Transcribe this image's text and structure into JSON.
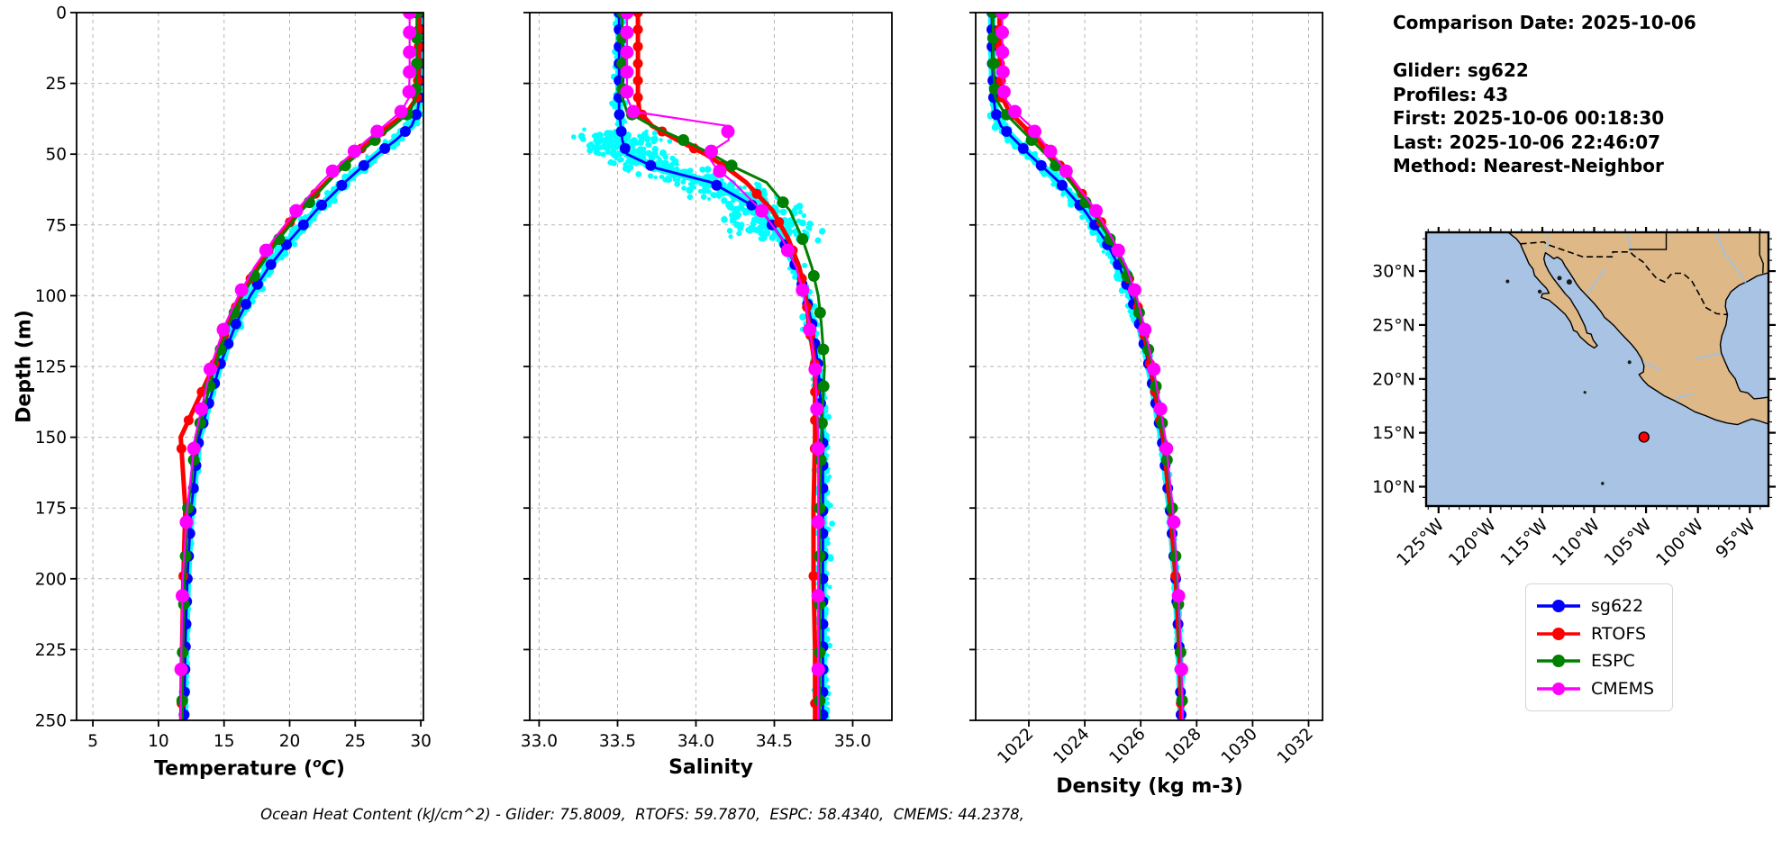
{
  "colors": {
    "sg622": "#0000ff",
    "RTOFS": "#ff0000",
    "ESPC": "#008000",
    "CMEMS": "#ff00ff",
    "scatter": "#00ffff",
    "grid": "#b5b5b5",
    "land": "#deb887",
    "ocean": "#a8c3e3",
    "river": "#9dc3e6",
    "marker": "#ff0000"
  },
  "info_block": {
    "line1": "Comparison Date: 2025-10-06",
    "line2": "Glider: sg622",
    "line3": "Profiles: 43",
    "line4": "First: 2025-10-06 00:18:30",
    "line5": "Last: 2025-10-06 22:46:07",
    "line6": "Method: Nearest-Neighbor"
  },
  "axes": {
    "ylabel": "Depth (m)",
    "temp_label": {
      "prefix": "Temperature (",
      "sup": "o",
      "unit": "C",
      "suffix": ")"
    }
  },
  "ohc_line": "Ocean Heat Content (kJ/cm^2) - Glider: 75.8009,  RTOFS: 59.7870,  ESPC: 58.4340,  CMEMS: 44.2378,",
  "legend": {
    "entries": [
      {
        "label": "sg622",
        "color": "#0000ff"
      },
      {
        "label": "RTOFS",
        "color": "#ff0000"
      },
      {
        "label": "ESPC",
        "color": "#008000"
      },
      {
        "label": "CMEMS",
        "color": "#ff00ff"
      }
    ]
  },
  "chart_data": [
    {
      "type": "line",
      "id": "temperature",
      "xlabel": "Temperature (°C)",
      "ylabel": "Depth (m)",
      "xlim": [
        3.76,
        30.2
      ],
      "ylim": [
        250,
        0
      ],
      "xticks": [
        5,
        10,
        15,
        20,
        25,
        30
      ],
      "xtick_labels": [
        "5",
        "10",
        "15",
        "20",
        "25",
        "30"
      ],
      "yticks": [
        0,
        25,
        50,
        75,
        100,
        125,
        150,
        175,
        200,
        225,
        250
      ],
      "grid": true,
      "legend_position": "figure-right",
      "depths": [
        0,
        10,
        20,
        30,
        35,
        40,
        45,
        50,
        55,
        60,
        70,
        80,
        90,
        100,
        110,
        125,
        150,
        175,
        200,
        225,
        250
      ],
      "series": [
        {
          "name": "sg622",
          "color": "#0000ff",
          "values": [
            29.95,
            29.95,
            29.93,
            29.9,
            29.75,
            29.3,
            28.1,
            26.7,
            25.4,
            24.2,
            22.0,
            20.1,
            18.4,
            17.0,
            15.9,
            14.65,
            13.1,
            12.5,
            12.2,
            12.05,
            11.95
          ]
        },
        {
          "name": "RTOFS",
          "color": "#ff0000",
          "values": [
            29.85,
            29.85,
            29.83,
            29.7,
            29.0,
            27.6,
            26.2,
            25.0,
            23.9,
            22.8,
            20.7,
            19.0,
            17.5,
            16.3,
            15.3,
            14.2,
            11.7,
            12.05,
            11.9,
            11.8,
            11.75
          ]
        },
        {
          "name": "ESPC",
          "color": "#008000",
          "values": [
            29.7,
            29.7,
            29.7,
            29.6,
            29.2,
            27.9,
            26.5,
            25.2,
            24.0,
            22.9,
            20.9,
            19.2,
            17.7,
            16.4,
            15.4,
            14.3,
            12.9,
            12.25,
            12.0,
            11.85,
            11.8
          ]
        },
        {
          "name": "CMEMS",
          "color": "#ff00ff",
          "values": [
            29.15,
            29.15,
            29.15,
            29.1,
            28.5,
            27.2,
            25.9,
            24.7,
            23.5,
            22.4,
            20.5,
            18.8,
            17.3,
            16.1,
            15.1,
            14.0,
            12.8,
            12.2,
            11.85,
            11.75,
            11.7
          ]
        }
      ],
      "scatter": {
        "name": "glider raw points",
        "follows": "sg622",
        "color": "#00ffff",
        "band": [
          35,
          115
        ],
        "band_frac": 0.35,
        "amp_above": 0.1,
        "amp_band": 0.55,
        "amp_below": 0.2,
        "n": 750
      }
    },
    {
      "type": "line",
      "id": "salinity",
      "xlabel": "Salinity",
      "ylabel": "Depth (m)",
      "xlim": [
        32.94,
        35.25
      ],
      "ylim": [
        250,
        0
      ],
      "xticks": [
        33.0,
        33.5,
        34.0,
        34.5,
        35.0
      ],
      "xtick_labels": [
        "33.0",
        "33.5",
        "34.0",
        "34.5",
        "35.0"
      ],
      "yticks": [
        0,
        25,
        50,
        75,
        100,
        125,
        150,
        175,
        200,
        225,
        250
      ],
      "grid": true,
      "depths": [
        0,
        10,
        20,
        30,
        35,
        40,
        45,
        50,
        55,
        60,
        70,
        80,
        90,
        100,
        110,
        125,
        150,
        175,
        200,
        225,
        250
      ],
      "series": [
        {
          "name": "sg622",
          "color": "#0000ff",
          "values": [
            33.51,
            33.51,
            33.51,
            33.51,
            33.51,
            33.52,
            33.53,
            33.56,
            33.75,
            34.1,
            34.42,
            34.55,
            34.64,
            34.7,
            34.74,
            34.78,
            34.81,
            34.81,
            34.81,
            34.81,
            34.81
          ]
        },
        {
          "name": "RTOFS",
          "color": "#ff0000",
          "values": [
            33.63,
            33.63,
            33.63,
            33.63,
            33.64,
            33.72,
            33.88,
            34.06,
            34.2,
            34.32,
            34.49,
            34.59,
            34.66,
            34.7,
            34.72,
            34.76,
            34.76,
            34.75,
            34.75,
            34.76,
            34.76
          ]
        },
        {
          "name": "ESPC",
          "color": "#008000",
          "values": [
            33.53,
            33.53,
            33.53,
            33.53,
            33.56,
            33.72,
            33.92,
            34.1,
            34.26,
            34.45,
            34.6,
            34.68,
            34.74,
            34.78,
            34.8,
            34.82,
            34.8,
            34.79,
            34.79,
            34.79,
            34.79
          ]
        },
        {
          "name": "CMEMS",
          "color": "#ff00ff",
          "values": [
            33.56,
            33.56,
            33.56,
            33.56,
            33.6,
            34.2,
            34.21,
            34.07,
            34.13,
            34.24,
            34.42,
            34.55,
            34.64,
            34.69,
            34.72,
            34.76,
            34.78,
            34.78,
            34.78,
            34.78,
            34.78
          ]
        }
      ],
      "scatter": {
        "name": "glider raw points",
        "follows": "sg622",
        "color": "#00ffff",
        "band": [
          42,
          80
        ],
        "band_frac": 0.5,
        "amp_above": 0.045,
        "amp_band": 0.3,
        "amp_below": 0.055,
        "n": 850
      }
    },
    {
      "type": "line",
      "id": "density",
      "xlabel": "Density (kg m-3)",
      "ylabel": "Depth (m)",
      "xlim": [
        1020.1,
        1032.5
      ],
      "ylim": [
        250,
        0
      ],
      "xticks": [
        1022,
        1024,
        1026,
        1028,
        1030,
        1032
      ],
      "xtick_labels": [
        "1022",
        "1024",
        "1026",
        "1028",
        "1030",
        "1032"
      ],
      "xtick_rotation": 45,
      "yticks": [
        0,
        25,
        50,
        75,
        100,
        125,
        150,
        175,
        200,
        225,
        250
      ],
      "grid": true,
      "depths": [
        0,
        10,
        20,
        30,
        35,
        40,
        45,
        50,
        55,
        60,
        70,
        80,
        90,
        100,
        110,
        125,
        150,
        175,
        200,
        225,
        250
      ],
      "series": [
        {
          "name": "sg622",
          "color": "#0000ff",
          "values": [
            1020.68,
            1020.68,
            1020.7,
            1020.74,
            1020.8,
            1021.0,
            1021.5,
            1022.0,
            1022.55,
            1023.1,
            1024.0,
            1024.7,
            1025.25,
            1025.65,
            1025.95,
            1026.3,
            1026.75,
            1027.05,
            1027.25,
            1027.38,
            1027.45
          ]
        },
        {
          "name": "RTOFS",
          "color": "#ff0000",
          "values": [
            1020.95,
            1020.95,
            1020.97,
            1021.05,
            1021.3,
            1021.8,
            1022.3,
            1022.75,
            1023.2,
            1023.6,
            1024.35,
            1024.95,
            1025.45,
            1025.8,
            1026.05,
            1026.35,
            1026.8,
            1027.05,
            1027.25,
            1027.38,
            1027.45
          ]
        },
        {
          "name": "ESPC",
          "color": "#008000",
          "values": [
            1020.72,
            1020.72,
            1020.74,
            1020.8,
            1021.1,
            1021.6,
            1022.1,
            1022.6,
            1023.05,
            1023.5,
            1024.25,
            1024.9,
            1025.4,
            1025.78,
            1026.05,
            1026.42,
            1026.85,
            1027.12,
            1027.3,
            1027.42,
            1027.5
          ]
        },
        {
          "name": "CMEMS",
          "color": "#ff00ff",
          "values": [
            1021.05,
            1021.05,
            1021.07,
            1021.12,
            1021.5,
            1022.05,
            1022.45,
            1022.85,
            1023.25,
            1023.65,
            1024.4,
            1025.0,
            1025.5,
            1025.85,
            1026.1,
            1026.45,
            1026.88,
            1027.15,
            1027.32,
            1027.44,
            1027.5
          ]
        }
      ],
      "scatter": {
        "name": "glider raw points",
        "follows": "sg622",
        "color": "#00ffff",
        "band": [
          35,
          110
        ],
        "band_frac": 0.35,
        "amp_above": 0.06,
        "amp_band": 0.28,
        "amp_below": 0.1,
        "n": 700
      }
    },
    {
      "type": "map",
      "id": "location-map",
      "extent": {
        "lon": [
          -126.2,
          -93.2
        ],
        "lat": [
          8.2,
          33.6
        ]
      },
      "lon_ticks": [
        -125,
        -120,
        -115,
        -110,
        -105,
        -100,
        -95
      ],
      "lon_tick_labels": [
        "125°W",
        "120°W",
        "115°W",
        "110°W",
        "105°W",
        "100°W",
        "95°W"
      ],
      "lat_ticks": [
        10,
        15,
        20,
        25,
        30
      ],
      "lat_tick_labels": [
        "10°N",
        "15°N",
        "20°N",
        "25°N",
        "30°N"
      ],
      "marker": {
        "lon": -105.2,
        "lat": 14.6,
        "color": "#ff0000"
      }
    }
  ]
}
